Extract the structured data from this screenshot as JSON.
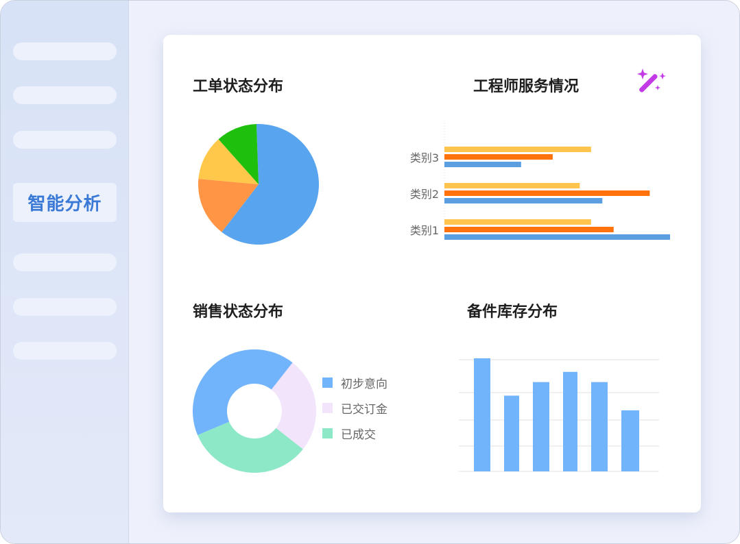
{
  "sidebar": {
    "active_item": "智能分析",
    "placeholder_items": 6
  },
  "icons": {
    "magic": "magic-wand-icon",
    "magic_color": "#c23be6"
  },
  "chart_data": [
    {
      "type": "pie",
      "title": "工单状态分布",
      "values": [
        61,
        16,
        12,
        11
      ],
      "colors": [
        "#58a4ee",
        "#ff9545",
        "#ffc84a",
        "#1fbf0d"
      ]
    },
    {
      "type": "bar",
      "orientation": "horizontal",
      "title": "工程师服务情况",
      "categories": [
        "类别3",
        "类别2",
        "类别1"
      ],
      "series": [
        {
          "values": [
            65,
            60,
            65
          ],
          "color": "#ffc44d"
        },
        {
          "values": [
            48,
            91,
            75
          ],
          "color": "#ff720c"
        },
        {
          "values": [
            34,
            70,
            100
          ],
          "color": "#5b9fe0"
        }
      ],
      "xlim": [
        0,
        100
      ]
    },
    {
      "type": "pie",
      "variant": "donut",
      "title": "销售状态分布",
      "labels": [
        "初步意向",
        "已交订金",
        "已成交"
      ],
      "values": [
        42,
        25,
        33
      ],
      "colors": [
        "#72b4fb",
        "#f1e4fb",
        "#8ce8c6"
      ],
      "legend": "right"
    },
    {
      "type": "bar",
      "title": "备件库存分布",
      "values": [
        100,
        67,
        79,
        88,
        79,
        54
      ],
      "color": "#72b4fb",
      "ylim": [
        0,
        100
      ],
      "grid": true
    }
  ]
}
